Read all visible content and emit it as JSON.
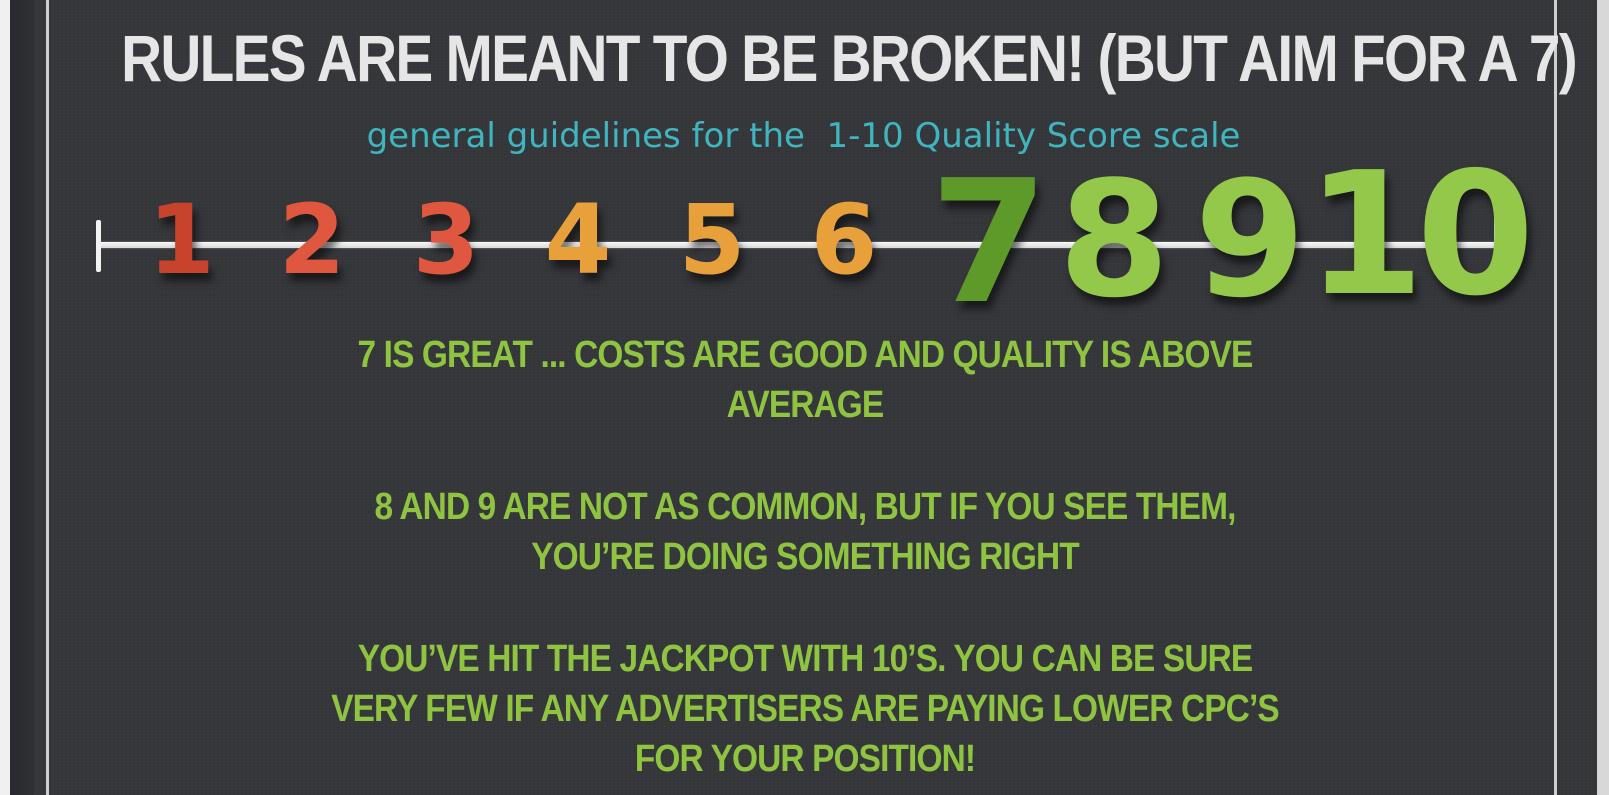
{
  "slide": {
    "title": "RULES ARE MEANT TO BE BROKEN! (BUT AIM FOR A 7)",
    "subtitle": "general guidelines for the  1-10 Quality Score scale"
  },
  "scale": {
    "numbers": [
      {
        "label": "1",
        "color": "#c8432b"
      },
      {
        "label": "2",
        "color": "#e0573f"
      },
      {
        "label": "3",
        "color": "#e0573f"
      },
      {
        "label": "4",
        "color": "#e8a03a"
      },
      {
        "label": "5",
        "color": "#e8a03a"
      },
      {
        "label": "6",
        "color": "#e8a03a"
      },
      {
        "label": "7",
        "color": "#5e9a2a"
      },
      {
        "label": "8",
        "color": "#93c84a"
      },
      {
        "label": "9",
        "color": "#93c84a"
      },
      {
        "label": "10",
        "color": "#93c84a"
      }
    ]
  },
  "messages": [
    {
      "text": "7 IS GREAT ... COSTS ARE GOOD AND QUALITY IS ABOVE AVERAGE"
    },
    {
      "text": "8 AND 9 ARE NOT AS COMMON, BUT IF YOU SEE THEM, YOU’RE DOING SOMETHING RIGHT"
    },
    {
      "text": "YOU’VE HIT THE JACKPOT WITH 10’S. YOU CAN BE SURE VERY FEW IF ANY ADVERTISERS ARE PAYING LOWER CPC’S FOR YOUR POSITION!"
    }
  ],
  "colors": {
    "background": "#36373b",
    "title": "#e6e6e6",
    "subtitle": "#3fb5bf",
    "message": "#8fc441"
  }
}
